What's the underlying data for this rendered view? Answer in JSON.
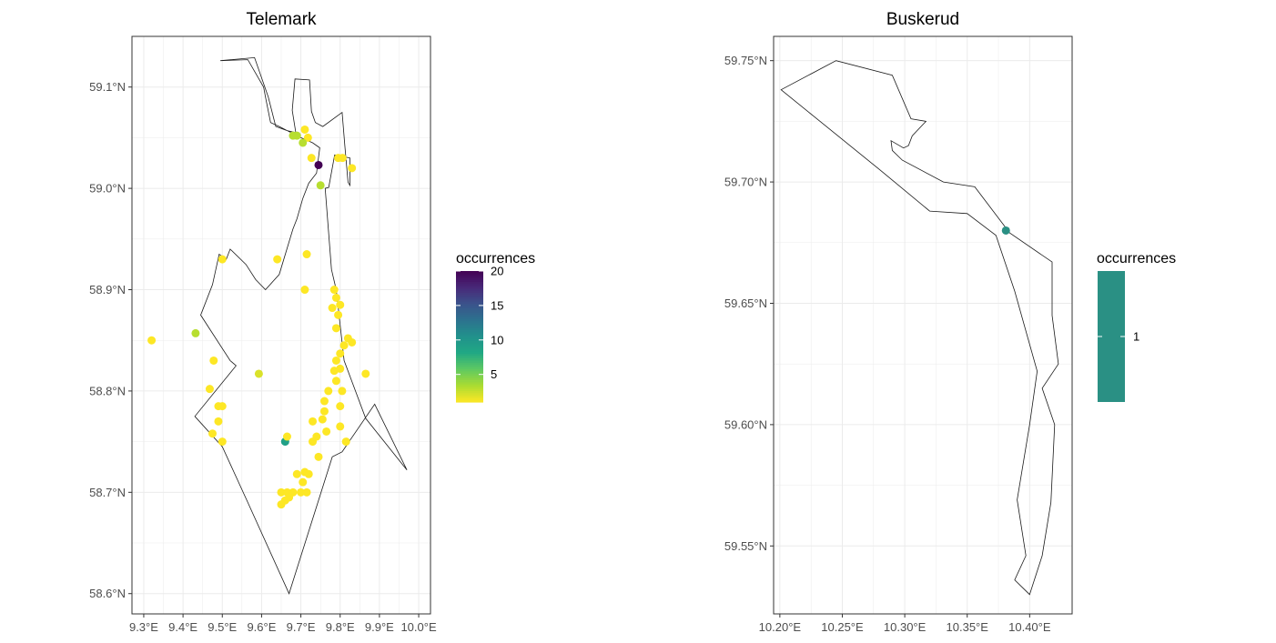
{
  "chart_data": [
    {
      "type": "scatter",
      "title": "Telemark",
      "xlabel": "",
      "ylabel": "",
      "xlim": [
        9.27,
        10.03
      ],
      "ylim": [
        58.58,
        59.15
      ],
      "xticks": [
        9.3,
        9.4,
        9.5,
        9.6,
        9.7,
        9.8,
        9.9,
        10.0
      ],
      "xtick_labels": [
        "9.3°E",
        "9.4°E",
        "9.5°E",
        "9.6°E",
        "9.7°E",
        "9.8°E",
        "9.9°E",
        "10.0°E"
      ],
      "yticks": [
        58.6,
        58.7,
        58.8,
        58.9,
        59.0,
        59.1
      ],
      "ytick_labels": [
        "58.6°N",
        "58.7°N",
        "58.8°N",
        "58.9°N",
        "59.0°N",
        "59.1°N"
      ],
      "grid": true,
      "legend": {
        "title": "occurrences",
        "placement": "right",
        "colormap": "viridis (reversed)",
        "range": [
          1,
          20
        ],
        "ticks": [
          5,
          10,
          15,
          20
        ],
        "tick_labels": [
          "5",
          "10",
          "15",
          "20"
        ]
      },
      "outline": [
        [
          9.495,
          59.126
        ],
        [
          9.582,
          59.129
        ],
        [
          9.617,
          59.09
        ],
        [
          9.636,
          59.061
        ],
        [
          9.665,
          59.057
        ],
        [
          9.687,
          59.055
        ],
        [
          9.678,
          59.077
        ],
        [
          9.685,
          59.108
        ],
        [
          9.722,
          59.107
        ],
        [
          9.727,
          59.076
        ],
        [
          9.737,
          59.065
        ],
        [
          9.756,
          59.061
        ],
        [
          9.805,
          59.075
        ],
        [
          9.812,
          59.042
        ],
        [
          9.82,
          59.006
        ],
        [
          9.825,
          59.003
        ],
        [
          9.825,
          59.03
        ],
        [
          9.786,
          59.033
        ],
        [
          9.771,
          59.001
        ],
        [
          9.762,
          59.0
        ],
        [
          9.778,
          58.92
        ],
        [
          9.79,
          58.9
        ],
        [
          9.81,
          58.83
        ],
        [
          9.865,
          58.773
        ],
        [
          9.97,
          58.722
        ],
        [
          9.888,
          58.787
        ],
        [
          9.805,
          58.74
        ],
        [
          9.78,
          58.735
        ],
        [
          9.67,
          58.6
        ],
        [
          9.565,
          58.69
        ],
        [
          9.5,
          58.745
        ],
        [
          9.43,
          58.775
        ],
        [
          9.535,
          58.825
        ],
        [
          9.52,
          58.83
        ],
        [
          9.47,
          58.86
        ],
        [
          9.445,
          58.875
        ],
        [
          9.45,
          58.88
        ],
        [
          9.475,
          58.905
        ],
        [
          9.492,
          58.935
        ],
        [
          9.51,
          58.93
        ],
        [
          9.52,
          58.94
        ],
        [
          9.56,
          58.925
        ],
        [
          9.585,
          58.91
        ],
        [
          9.61,
          58.9
        ],
        [
          9.645,
          58.915
        ],
        [
          9.68,
          58.96
        ],
        [
          9.69,
          58.97
        ],
        [
          9.705,
          58.99
        ],
        [
          9.72,
          59.005
        ],
        [
          9.74,
          59.015
        ],
        [
          9.748,
          59.04
        ],
        [
          9.73,
          59.045
        ],
        [
          9.7,
          59.05
        ],
        [
          9.675,
          59.055
        ],
        [
          9.645,
          59.061
        ],
        [
          9.623,
          59.065
        ],
        [
          9.612,
          59.086
        ],
        [
          9.605,
          59.1
        ],
        [
          9.565,
          59.127
        ],
        [
          9.495,
          59.126
        ]
      ],
      "points": [
        {
          "x": 9.745,
          "y": 59.023,
          "n": 20
        },
        {
          "x": 9.718,
          "y": 59.05,
          "n": 1
        },
        {
          "x": 9.727,
          "y": 59.03,
          "n": 1
        },
        {
          "x": 9.71,
          "y": 59.058,
          "n": 1
        },
        {
          "x": 9.795,
          "y": 59.03,
          "n": 1
        },
        {
          "x": 9.806,
          "y": 59.03,
          "n": 1
        },
        {
          "x": 9.83,
          "y": 59.02,
          "n": 1
        },
        {
          "x": 9.68,
          "y": 59.052,
          "n": 3
        },
        {
          "x": 9.69,
          "y": 59.052,
          "n": 3
        },
        {
          "x": 9.705,
          "y": 59.045,
          "n": 3
        },
        {
          "x": 9.75,
          "y": 59.003,
          "n": 3
        },
        {
          "x": 9.5,
          "y": 58.93,
          "n": 1
        },
        {
          "x": 9.64,
          "y": 58.93,
          "n": 1
        },
        {
          "x": 9.715,
          "y": 58.935,
          "n": 1
        },
        {
          "x": 9.71,
          "y": 58.9,
          "n": 1
        },
        {
          "x": 9.32,
          "y": 58.85,
          "n": 1
        },
        {
          "x": 9.432,
          "y": 58.857,
          "n": 3
        },
        {
          "x": 9.478,
          "y": 58.83,
          "n": 1
        },
        {
          "x": 9.593,
          "y": 58.817,
          "n": 2
        },
        {
          "x": 9.468,
          "y": 58.802,
          "n": 1
        },
        {
          "x": 9.49,
          "y": 58.785,
          "n": 1
        },
        {
          "x": 9.5,
          "y": 58.785,
          "n": 1
        },
        {
          "x": 9.49,
          "y": 58.77,
          "n": 1
        },
        {
          "x": 9.475,
          "y": 58.758,
          "n": 1
        },
        {
          "x": 9.5,
          "y": 58.75,
          "n": 1
        },
        {
          "x": 9.66,
          "y": 58.75,
          "n": 9
        },
        {
          "x": 9.665,
          "y": 58.755,
          "n": 1
        },
        {
          "x": 9.785,
          "y": 58.9,
          "n": 1
        },
        {
          "x": 9.79,
          "y": 58.892,
          "n": 1
        },
        {
          "x": 9.8,
          "y": 58.885,
          "n": 1
        },
        {
          "x": 9.78,
          "y": 58.882,
          "n": 1
        },
        {
          "x": 9.795,
          "y": 58.875,
          "n": 1
        },
        {
          "x": 9.79,
          "y": 58.862,
          "n": 1
        },
        {
          "x": 9.82,
          "y": 58.852,
          "n": 1
        },
        {
          "x": 9.83,
          "y": 58.848,
          "n": 1
        },
        {
          "x": 9.81,
          "y": 58.845,
          "n": 1
        },
        {
          "x": 9.8,
          "y": 58.837,
          "n": 1
        },
        {
          "x": 9.79,
          "y": 58.83,
          "n": 1
        },
        {
          "x": 9.865,
          "y": 58.817,
          "n": 1
        },
        {
          "x": 9.8,
          "y": 58.822,
          "n": 1
        },
        {
          "x": 9.785,
          "y": 58.82,
          "n": 1
        },
        {
          "x": 9.79,
          "y": 58.81,
          "n": 1
        },
        {
          "x": 9.77,
          "y": 58.8,
          "n": 1
        },
        {
          "x": 9.76,
          "y": 58.79,
          "n": 1
        },
        {
          "x": 9.805,
          "y": 58.8,
          "n": 1
        },
        {
          "x": 9.8,
          "y": 58.785,
          "n": 1
        },
        {
          "x": 9.76,
          "y": 58.78,
          "n": 1
        },
        {
          "x": 9.755,
          "y": 58.772,
          "n": 1
        },
        {
          "x": 9.73,
          "y": 58.77,
          "n": 1
        },
        {
          "x": 9.765,
          "y": 58.76,
          "n": 1
        },
        {
          "x": 9.8,
          "y": 58.765,
          "n": 1
        },
        {
          "x": 9.74,
          "y": 58.755,
          "n": 1
        },
        {
          "x": 9.73,
          "y": 58.75,
          "n": 1
        },
        {
          "x": 9.815,
          "y": 58.75,
          "n": 1
        },
        {
          "x": 9.745,
          "y": 58.735,
          "n": 1
        },
        {
          "x": 9.71,
          "y": 58.72,
          "n": 1
        },
        {
          "x": 9.72,
          "y": 58.718,
          "n": 1
        },
        {
          "x": 9.69,
          "y": 58.718,
          "n": 1
        },
        {
          "x": 9.705,
          "y": 58.71,
          "n": 1
        },
        {
          "x": 9.65,
          "y": 58.7,
          "n": 1
        },
        {
          "x": 9.665,
          "y": 58.7,
          "n": 1
        },
        {
          "x": 9.68,
          "y": 58.7,
          "n": 1
        },
        {
          "x": 9.7,
          "y": 58.7,
          "n": 1
        },
        {
          "x": 9.715,
          "y": 58.7,
          "n": 1
        },
        {
          "x": 9.66,
          "y": 58.692,
          "n": 1
        },
        {
          "x": 9.65,
          "y": 58.688,
          "n": 1
        },
        {
          "x": 9.67,
          "y": 58.695,
          "n": 1
        }
      ]
    },
    {
      "type": "scatter",
      "title": "Buskerud",
      "xlabel": "",
      "ylabel": "",
      "xlim": [
        10.195,
        10.434
      ],
      "ylim": [
        59.522,
        59.76
      ],
      "xticks": [
        10.2,
        10.25,
        10.3,
        10.35,
        10.4
      ],
      "xtick_labels": [
        "10.20°E",
        "10.25°E",
        "10.30°E",
        "10.35°E",
        "10.40°E"
      ],
      "yticks": [
        59.55,
        59.6,
        59.65,
        59.7,
        59.75
      ],
      "ytick_labels": [
        "59.55°N",
        "59.60°N",
        "59.65°N",
        "59.70°N",
        "59.75°N"
      ],
      "grid": true,
      "legend": {
        "title": "occurrences",
        "placement": "right",
        "colormap": "viridis (single value)",
        "range": [
          1,
          1
        ],
        "ticks": [
          1
        ],
        "tick_labels": [
          "1"
        ],
        "color": "#2a9084"
      },
      "outline": [
        [
          10.201,
          59.738
        ],
        [
          10.245,
          59.75
        ],
        [
          10.29,
          59.744
        ],
        [
          10.305,
          59.726
        ],
        [
          10.317,
          59.725
        ],
        [
          10.306,
          59.719
        ],
        [
          10.303,
          59.715
        ],
        [
          10.299,
          59.714
        ],
        [
          10.289,
          59.717
        ],
        [
          10.29,
          59.713
        ],
        [
          10.298,
          59.709
        ],
        [
          10.331,
          59.7
        ],
        [
          10.356,
          59.698
        ],
        [
          10.384,
          59.679
        ],
        [
          10.418,
          59.667
        ],
        [
          10.418,
          59.645
        ],
        [
          10.423,
          59.625
        ],
        [
          10.41,
          59.615
        ],
        [
          10.42,
          59.6
        ],
        [
          10.417,
          59.568
        ],
        [
          10.41,
          59.546
        ],
        [
          10.4,
          59.53
        ],
        [
          10.388,
          59.536
        ],
        [
          10.397,
          59.546
        ],
        [
          10.39,
          59.569
        ],
        [
          10.4,
          59.6
        ],
        [
          10.406,
          59.622
        ],
        [
          10.388,
          59.655
        ],
        [
          10.373,
          59.678
        ],
        [
          10.35,
          59.687
        ],
        [
          10.32,
          59.688
        ],
        [
          10.28,
          59.705
        ],
        [
          10.201,
          59.738
        ]
      ],
      "points": [
        {
          "x": 10.381,
          "y": 59.68,
          "n": 1
        }
      ]
    }
  ]
}
